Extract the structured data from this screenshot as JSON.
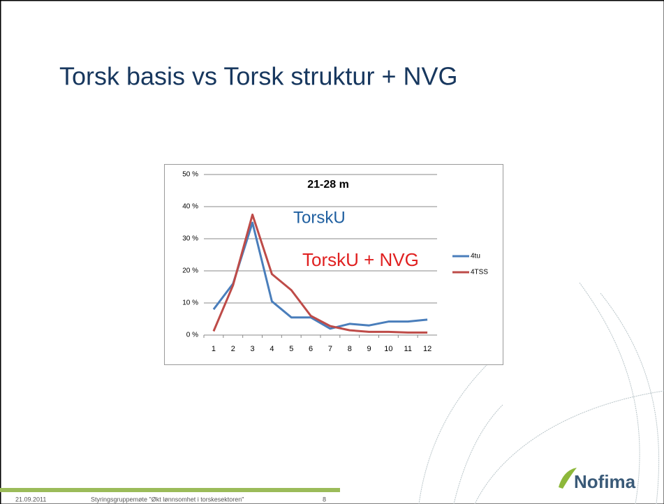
{
  "slide": {
    "title": "Torsk basis vs Torsk struktur + NVG",
    "footer": {
      "date": "21.09.2011",
      "text": "Styringsgruppemøte \"Økt lønnsomhet i torskesektoren\"",
      "page": "8"
    },
    "logo": "Nofima"
  },
  "chart_data": {
    "type": "line",
    "title": "21-28 m",
    "annotations": [
      {
        "text": "TorskU",
        "color": "#1f5fa0"
      },
      {
        "text": "TorskU + NVG",
        "color": "#e02020"
      }
    ],
    "categories": [
      1,
      2,
      3,
      4,
      5,
      6,
      7,
      8,
      9,
      10,
      11,
      12
    ],
    "series": [
      {
        "name": "4tu",
        "color": "#4a7ebb",
        "values": [
          8,
          16,
          35,
          10.5,
          5.5,
          5.5,
          2,
          3.5,
          3,
          4.2,
          4.2,
          4.8
        ]
      },
      {
        "name": "4TSS",
        "color": "#be4b48",
        "values": [
          1.2,
          15.5,
          37.5,
          19,
          14,
          6,
          2.8,
          1.5,
          1,
          1,
          0.8,
          0.8
        ]
      }
    ],
    "ylim": [
      0,
      50
    ],
    "yticks": [
      {
        "value": 0,
        "label": "0 %"
      },
      {
        "value": 10,
        "label": "10 %"
      },
      {
        "value": 20,
        "label": "20 %"
      },
      {
        "value": 30,
        "label": "30 %"
      },
      {
        "value": 40,
        "label": "40 %"
      },
      {
        "value": 50,
        "label": "50 %"
      }
    ],
    "grid": true,
    "legend": "right"
  }
}
